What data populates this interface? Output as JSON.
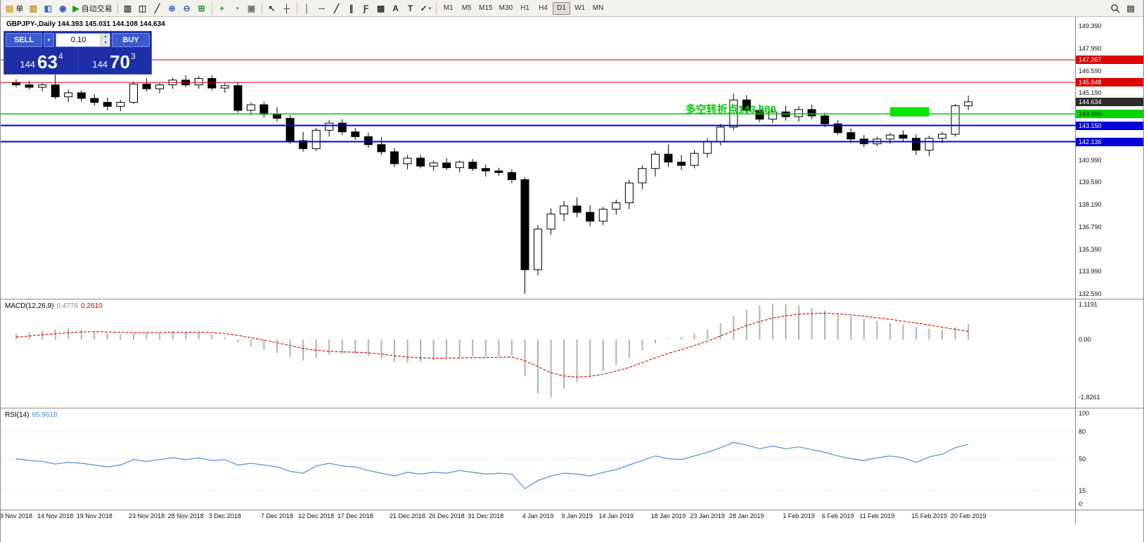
{
  "icons": {
    "caret_down": "▾",
    "spinner_up": "▴",
    "spinner_down": "▾"
  },
  "toolbar": {
    "right_icon_glyph": "▤",
    "groups": [
      {
        "items": [
          {
            "name": "new-order-button",
            "glyph": "▤",
            "color": "#d8a020",
            "label": "单"
          },
          {
            "name": "market-watch-icon",
            "glyph": "▥",
            "color": "#c09028"
          },
          {
            "name": "data-window-icon",
            "glyph": "◧",
            "color": "#4070c0"
          },
          {
            "name": "navigator-icon",
            "glyph": "◉",
            "color": "#3060b8"
          },
          {
            "name": "auto-trading-button",
            "glyph": "▶",
            "color": "#1aa51a",
            "label": "自动交易"
          }
        ]
      },
      {
        "items": [
          {
            "name": "bar-chart-icon",
            "glyph": "▥",
            "color": "#404040"
          },
          {
            "name": "candlestick-icon",
            "glyph": "◫",
            "color": "#404040"
          },
          {
            "name": "line-chart-icon",
            "glyph": "╱",
            "color": "#404040"
          },
          {
            "name": "zoom-in-icon",
            "glyph": "⊕",
            "color": "#3565c5"
          },
          {
            "name": "zoom-out-icon",
            "glyph": "⊖",
            "color": "#3565c5"
          },
          {
            "name": "tile-windows-icon",
            "glyph": "⊞",
            "color": "#1a9a30"
          }
        ]
      },
      {
        "items": [
          {
            "name": "indicators-icon",
            "glyph": "+",
            "color": "#1aa51a"
          },
          {
            "name": "periods-icon",
            "glyph": "◔",
            "color": "#3565c5"
          },
          {
            "name": "templates-icon",
            "glyph": "▣",
            "color": "#707070"
          }
        ]
      },
      {
        "items": [
          {
            "name": "cursor-icon",
            "glyph": "↖",
            "color": "#333333"
          },
          {
            "name": "crosshair-icon",
            "glyph": "┼",
            "color": "#333333"
          }
        ]
      },
      {
        "items": [
          {
            "name": "vertical-line-icon",
            "glyph": "│",
            "color": "#333333"
          },
          {
            "name": "horizontal-line-icon",
            "glyph": "─",
            "color": "#333333"
          },
          {
            "name": "trendline-icon",
            "glyph": "╱",
            "color": "#333333"
          },
          {
            "name": "channel-icon",
            "glyph": "∥",
            "color": "#333333"
          },
          {
            "name": "fibonacci-icon",
            "glyph": "Ƒ",
            "color": "#333333"
          },
          {
            "name": "shapes-icon",
            "glyph": "▦",
            "color": "#333333"
          },
          {
            "name": "text-icon",
            "glyph": "A",
            "color": "#333333"
          },
          {
            "name": "label-icon",
            "glyph": "T",
            "color": "#333333"
          },
          {
            "name": "arrows-icon",
            "glyph": "✓",
            "color": "#333333",
            "caret": true
          }
        ]
      }
    ],
    "timeframes": {
      "items": [
        "M1",
        "M5",
        "M15",
        "M30",
        "H1",
        "H4",
        "D1",
        "W1",
        "MN"
      ],
      "active": "D1"
    }
  },
  "chart_header": {
    "text": "GBPJPY-,Daily 144.393 145.031 144.108 144.634"
  },
  "trade_panel": {
    "sell_label": "SELL",
    "buy_label": "BUY",
    "volume": "0.10",
    "sell_price": {
      "prefix": "144",
      "big": "63",
      "sup": "4"
    },
    "buy_price": {
      "prefix": "144",
      "big": "70",
      "sup": "3"
    }
  },
  "chart_data": {
    "type": "candlestick",
    "symbol": "GBPJPY-",
    "period": "Daily",
    "price_axis": {
      "min": 132.59,
      "max": 149.39,
      "ticks": [
        {
          "text": "149.390",
          "value": 149.39
        },
        {
          "text": "147.990",
          "value": 147.99
        },
        {
          "text": "146.590",
          "value": 146.59
        },
        {
          "text": "145.190",
          "value": 145.19
        },
        {
          "text": "140.990",
          "value": 140.99
        },
        {
          "text": "139.590",
          "value": 139.59
        },
        {
          "text": "138.190",
          "value": 138.19
        },
        {
          "text": "136.790",
          "value": 136.79
        },
        {
          "text": "135.390",
          "value": 135.39
        },
        {
          "text": "133.990",
          "value": 133.99
        },
        {
          "text": "132.590",
          "value": 132.59
        }
      ]
    },
    "badges": [
      {
        "text": "147.267",
        "price": 147.267,
        "bg": "#dd0000",
        "fg": "#ffffff"
      },
      {
        "text": "145.848",
        "price": 145.848,
        "bg": "#dd0000",
        "fg": "#ffffff"
      },
      {
        "text": "144.634",
        "price": 144.634,
        "bg": "#2b2b2b",
        "fg": "#ffffff"
      },
      {
        "text": "143.880",
        "price": 143.88,
        "bg": "#00d500",
        "fg": "#002200"
      },
      {
        "text": "143.150",
        "price": 143.15,
        "bg": "#0000d8",
        "fg": "#ffffff"
      },
      {
        "text": "142.136",
        "price": 142.136,
        "bg": "#0000d8",
        "fg": "#ffffff"
      }
    ],
    "hlines": [
      {
        "price": 147.267,
        "color": "#dd0000",
        "width": 1
      },
      {
        "price": 145.848,
        "color": "#dd0000",
        "width": 1
      },
      {
        "price": 143.88,
        "color": "#00cc00",
        "width": 1.5
      },
      {
        "price": 143.15,
        "color": "#0000d8",
        "width": 2
      },
      {
        "price": 142.136,
        "color": "#0000d8",
        "width": 2
      }
    ],
    "highlight_rect": {
      "i0": 67,
      "i1": 70,
      "p_top": 144.3,
      "p_bot": 143.72,
      "color": "#00e400"
    },
    "annotation": {
      "text": "多空转折点143.880",
      "i": 51.3,
      "price": 143.95,
      "color": "#00cc00"
    },
    "dates": [
      {
        "label": "9 Nov 2018",
        "i": 0
      },
      {
        "label": "14 Nov 2018",
        "i": 3
      },
      {
        "label": "19 Nov 2018",
        "i": 6
      },
      {
        "label": "23 Nov 2018",
        "i": 10
      },
      {
        "label": "28 Nov 2018",
        "i": 13
      },
      {
        "label": "3 Dec 2018",
        "i": 16
      },
      {
        "label": "7 Dec 2018",
        "i": 20
      },
      {
        "label": "12 Dec 2018",
        "i": 23
      },
      {
        "label": "17 Dec 2018",
        "i": 26
      },
      {
        "label": "21 Dec 2018",
        "i": 30
      },
      {
        "label": "26 Dec 2018",
        "i": 33
      },
      {
        "label": "31 Dec 2018",
        "i": 36
      },
      {
        "label": "4 Jan 2019",
        "i": 40
      },
      {
        "label": "9 Jan 2019",
        "i": 43
      },
      {
        "label": "14 Jan 2019",
        "i": 46
      },
      {
        "label": "18 Jan 2019",
        "i": 50
      },
      {
        "label": "23 Jan 2019",
        "i": 53
      },
      {
        "label": "28 Jan 2019",
        "i": 56
      },
      {
        "label": "1 Feb 2019",
        "i": 60
      },
      {
        "label": "6 Feb 2019",
        "i": 63
      },
      {
        "label": "11 Feb 2019",
        "i": 66
      },
      {
        "label": "15 Feb 2019",
        "i": 70
      },
      {
        "label": "20 Feb 2019",
        "i": 73
      }
    ],
    "candles": [
      [
        145.85,
        146.05,
        145.55,
        145.7
      ],
      [
        145.7,
        145.95,
        145.4,
        145.55
      ],
      [
        145.55,
        145.8,
        145.3,
        145.7
      ],
      [
        145.7,
        146.35,
        144.8,
        144.95
      ],
      [
        144.95,
        145.4,
        144.6,
        145.2
      ],
      [
        145.2,
        145.35,
        144.65,
        144.85
      ],
      [
        144.85,
        145.1,
        144.4,
        144.6
      ],
      [
        144.6,
        144.9,
        144.1,
        144.35
      ],
      [
        144.35,
        144.75,
        144.05,
        144.6
      ],
      [
        144.6,
        145.9,
        144.5,
        145.75
      ],
      [
        145.75,
        146.1,
        145.3,
        145.45
      ],
      [
        145.45,
        145.85,
        145.15,
        145.7
      ],
      [
        145.7,
        146.15,
        145.45,
        146.0
      ],
      [
        146.0,
        146.3,
        145.55,
        145.7
      ],
      [
        145.7,
        146.25,
        145.45,
        146.1
      ],
      [
        146.1,
        146.3,
        145.35,
        145.5
      ],
      [
        145.5,
        145.8,
        145.2,
        145.65
      ],
      [
        145.65,
        145.85,
        143.95,
        144.1
      ],
      [
        144.1,
        144.6,
        143.8,
        144.45
      ],
      [
        144.45,
        144.65,
        143.65,
        143.85
      ],
      [
        143.85,
        144.3,
        143.4,
        143.6
      ],
      [
        143.6,
        143.8,
        142.0,
        142.2
      ],
      [
        142.2,
        142.75,
        141.5,
        141.7
      ],
      [
        141.7,
        143.0,
        141.55,
        142.85
      ],
      [
        142.85,
        143.5,
        142.45,
        143.3
      ],
      [
        143.3,
        143.55,
        142.55,
        142.75
      ],
      [
        142.75,
        143.0,
        142.25,
        142.45
      ],
      [
        142.45,
        142.7,
        141.75,
        141.95
      ],
      [
        141.95,
        142.4,
        141.3,
        141.5
      ],
      [
        141.5,
        141.75,
        140.55,
        140.75
      ],
      [
        140.75,
        141.3,
        140.4,
        141.1
      ],
      [
        141.1,
        141.3,
        140.45,
        140.6
      ],
      [
        140.6,
        140.95,
        140.3,
        140.8
      ],
      [
        140.8,
        141.1,
        140.35,
        140.5
      ],
      [
        140.5,
        140.95,
        140.2,
        140.85
      ],
      [
        140.85,
        141.05,
        140.3,
        140.45
      ],
      [
        140.45,
        140.7,
        139.95,
        140.3
      ],
      [
        140.3,
        140.5,
        140.0,
        140.2
      ],
      [
        140.2,
        140.4,
        139.55,
        139.75
      ],
      [
        139.75,
        139.9,
        132.6,
        134.1
      ],
      [
        134.1,
        136.9,
        133.75,
        136.65
      ],
      [
        136.65,
        137.95,
        136.3,
        137.6
      ],
      [
        137.6,
        138.4,
        137.15,
        138.1
      ],
      [
        138.1,
        138.65,
        137.4,
        137.7
      ],
      [
        137.7,
        138.15,
        136.85,
        137.15
      ],
      [
        137.15,
        138.05,
        136.9,
        137.9
      ],
      [
        137.9,
        138.5,
        137.55,
        138.3
      ],
      [
        138.3,
        139.75,
        137.9,
        139.55
      ],
      [
        139.55,
        140.65,
        139.15,
        140.45
      ],
      [
        140.45,
        141.55,
        139.95,
        141.35
      ],
      [
        141.35,
        141.95,
        140.55,
        140.85
      ],
      [
        140.85,
        141.3,
        140.35,
        140.65
      ],
      [
        140.65,
        141.6,
        140.45,
        141.4
      ],
      [
        141.4,
        142.35,
        141.15,
        142.15
      ],
      [
        142.15,
        143.25,
        141.9,
        143.05
      ],
      [
        143.05,
        145.15,
        142.85,
        144.75
      ],
      [
        144.75,
        145.05,
        143.85,
        144.1
      ],
      [
        144.1,
        144.45,
        143.35,
        143.55
      ],
      [
        143.55,
        144.2,
        143.3,
        144.0
      ],
      [
        144.0,
        144.4,
        143.45,
        143.7
      ],
      [
        143.7,
        144.35,
        143.4,
        144.15
      ],
      [
        144.15,
        144.45,
        143.55,
        143.75
      ],
      [
        143.75,
        143.95,
        143.05,
        143.25
      ],
      [
        143.25,
        143.5,
        142.55,
        142.7
      ],
      [
        142.7,
        142.95,
        142.05,
        142.3
      ],
      [
        142.3,
        142.55,
        141.8,
        142.0
      ],
      [
        142.0,
        142.45,
        141.85,
        142.3
      ],
      [
        142.3,
        142.7,
        142.0,
        142.55
      ],
      [
        142.55,
        142.85,
        142.15,
        142.35
      ],
      [
        142.35,
        142.6,
        141.3,
        141.6
      ],
      [
        141.6,
        142.5,
        141.25,
        142.35
      ],
      [
        142.35,
        142.75,
        142.05,
        142.6
      ],
      [
        142.6,
        144.5,
        142.45,
        144.39
      ],
      [
        144.393,
        145.031,
        144.108,
        144.634
      ]
    ],
    "macd": {
      "label": "MACD(12,26,9)",
      "value_main": "0.4776",
      "value_signal": "0.2610",
      "axis": [
        {
          "text": "1.1191",
          "value": 1.1191
        },
        {
          "text": "0.00",
          "value": 0
        },
        {
          "text": "-1.8261",
          "value": -1.8261
        }
      ],
      "values": [
        0.18,
        0.24,
        0.28,
        0.32,
        0.35,
        0.31,
        0.26,
        0.21,
        0.17,
        0.2,
        0.22,
        0.24,
        0.26,
        0.24,
        0.21,
        0.16,
        0.06,
        -0.1,
        -0.22,
        -0.32,
        -0.42,
        -0.56,
        -0.66,
        -0.58,
        -0.48,
        -0.44,
        -0.46,
        -0.52,
        -0.6,
        -0.7,
        -0.72,
        -0.69,
        -0.64,
        -0.6,
        -0.56,
        -0.53,
        -0.55,
        -0.52,
        -0.5,
        -1.15,
        -1.7,
        -1.826,
        -1.55,
        -1.35,
        -1.18,
        -1.0,
        -0.8,
        -0.58,
        -0.35,
        -0.12,
        0.02,
        0.08,
        0.18,
        0.32,
        0.52,
        0.75,
        0.95,
        1.08,
        1.119,
        1.1,
        1.06,
        1.0,
        0.92,
        0.83,
        0.74,
        0.65,
        0.58,
        0.52,
        0.47,
        0.4,
        0.34,
        0.3,
        0.38,
        0.478
      ],
      "signal": [
        0.08,
        0.11,
        0.15,
        0.18,
        0.22,
        0.24,
        0.25,
        0.24,
        0.23,
        0.22,
        0.22,
        0.22,
        0.23,
        0.23,
        0.23,
        0.22,
        0.19,
        0.13,
        0.06,
        -0.02,
        -0.1,
        -0.19,
        -0.28,
        -0.34,
        -0.37,
        -0.39,
        -0.4,
        -0.42,
        -0.46,
        -0.51,
        -0.55,
        -0.58,
        -0.59,
        -0.59,
        -0.58,
        -0.57,
        -0.57,
        -0.56,
        -0.55,
        -0.67,
        -0.86,
        -1.05,
        -1.15,
        -1.19,
        -1.16,
        -1.1,
        -1.0,
        -0.88,
        -0.73,
        -0.58,
        -0.44,
        -0.32,
        -0.19,
        -0.05,
        0.11,
        0.28,
        0.44,
        0.57,
        0.68,
        0.75,
        0.8,
        0.82,
        0.83,
        0.81,
        0.78,
        0.74,
        0.69,
        0.64,
        0.58,
        0.52,
        0.46,
        0.39,
        0.32,
        0.26
      ]
    },
    "rsi": {
      "label": "RSI(14)",
      "value": "65.9618",
      "axis": [
        {
          "text": "100",
          "value": 100
        },
        {
          "text": "80",
          "value": 80
        },
        {
          "text": "50",
          "value": 50
        },
        {
          "text": "15",
          "value": 15
        },
        {
          "text": "0",
          "value": 0
        }
      ],
      "levels": [
        80,
        50,
        15
      ],
      "values": [
        50,
        48,
        47,
        44,
        46,
        45,
        43,
        41,
        43,
        49,
        47,
        49,
        51,
        49,
        51,
        48,
        49,
        43,
        45,
        43,
        41,
        36,
        34,
        42,
        45,
        42,
        41,
        37,
        34,
        31,
        35,
        33,
        35,
        34,
        37,
        35,
        33,
        34,
        33,
        17,
        26,
        31,
        34,
        33,
        31,
        35,
        38,
        43,
        48,
        53,
        50,
        49,
        53,
        57,
        62,
        68,
        65,
        61,
        64,
        61,
        63,
        60,
        57,
        53,
        50,
        48,
        51,
        53,
        51,
        46,
        52,
        55,
        62,
        66
      ]
    }
  }
}
